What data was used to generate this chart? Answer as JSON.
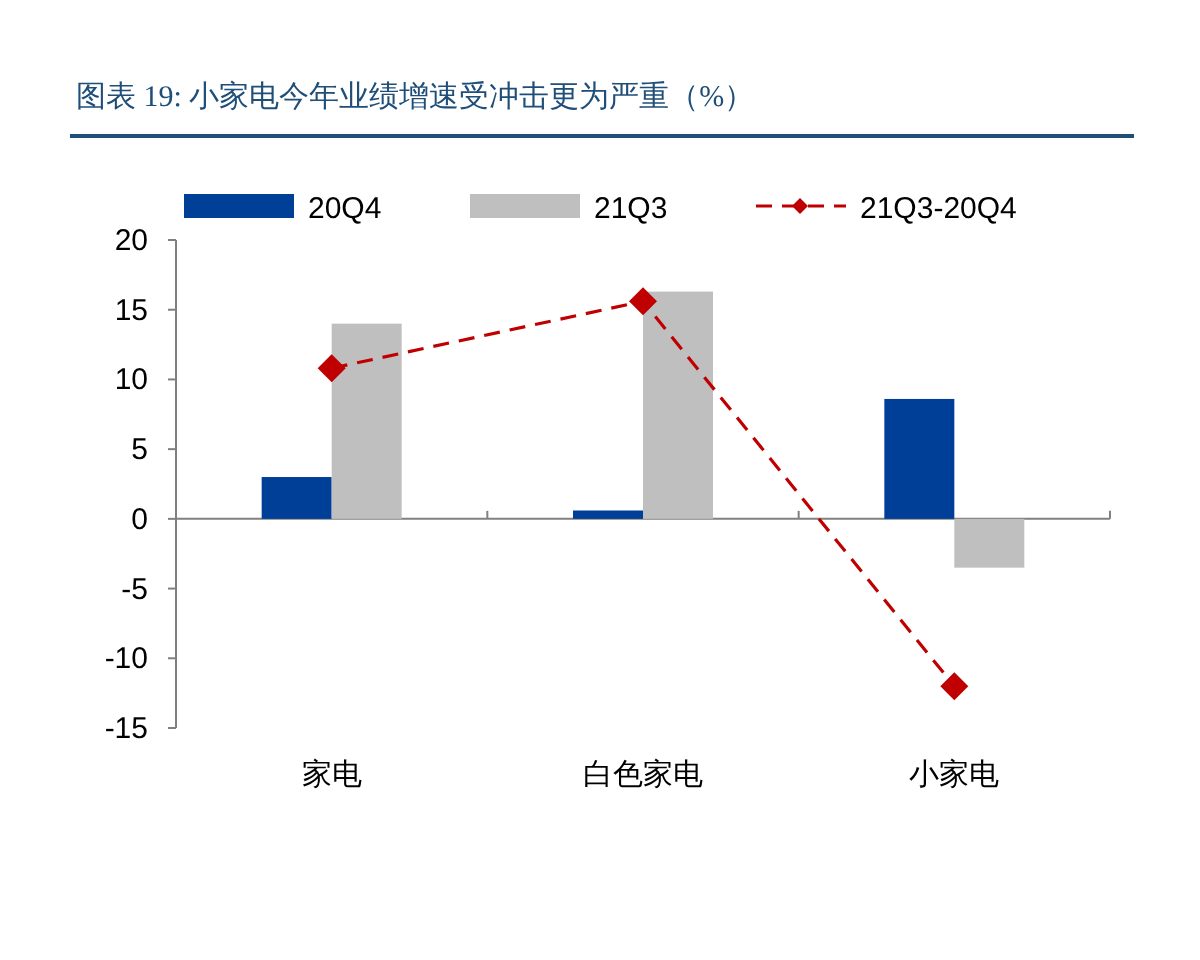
{
  "chart_data": {
    "type": "bar",
    "title": "图表 19: 小家电今年业绩增速受冲击更为严重（%）",
    "categories": [
      "家电",
      "白色家电",
      "小家电"
    ],
    "series": [
      {
        "name": "20Q4",
        "color": "#003f98",
        "values": [
          3.0,
          0.6,
          8.6
        ]
      },
      {
        "name": "21Q3",
        "color": "#bfbfbf",
        "values": [
          14.0,
          16.3,
          -3.5
        ]
      },
      {
        "name": "21Q3-20Q4",
        "type": "line",
        "color": "#c00000",
        "line_style": "dashed",
        "marker": "diamond",
        "values": [
          10.8,
          15.6,
          -12.0
        ]
      }
    ],
    "ylim": [
      -15,
      20
    ],
    "yticks": [
      -15,
      -10,
      -5,
      0,
      5,
      10,
      15,
      20
    ],
    "legend": "top"
  }
}
